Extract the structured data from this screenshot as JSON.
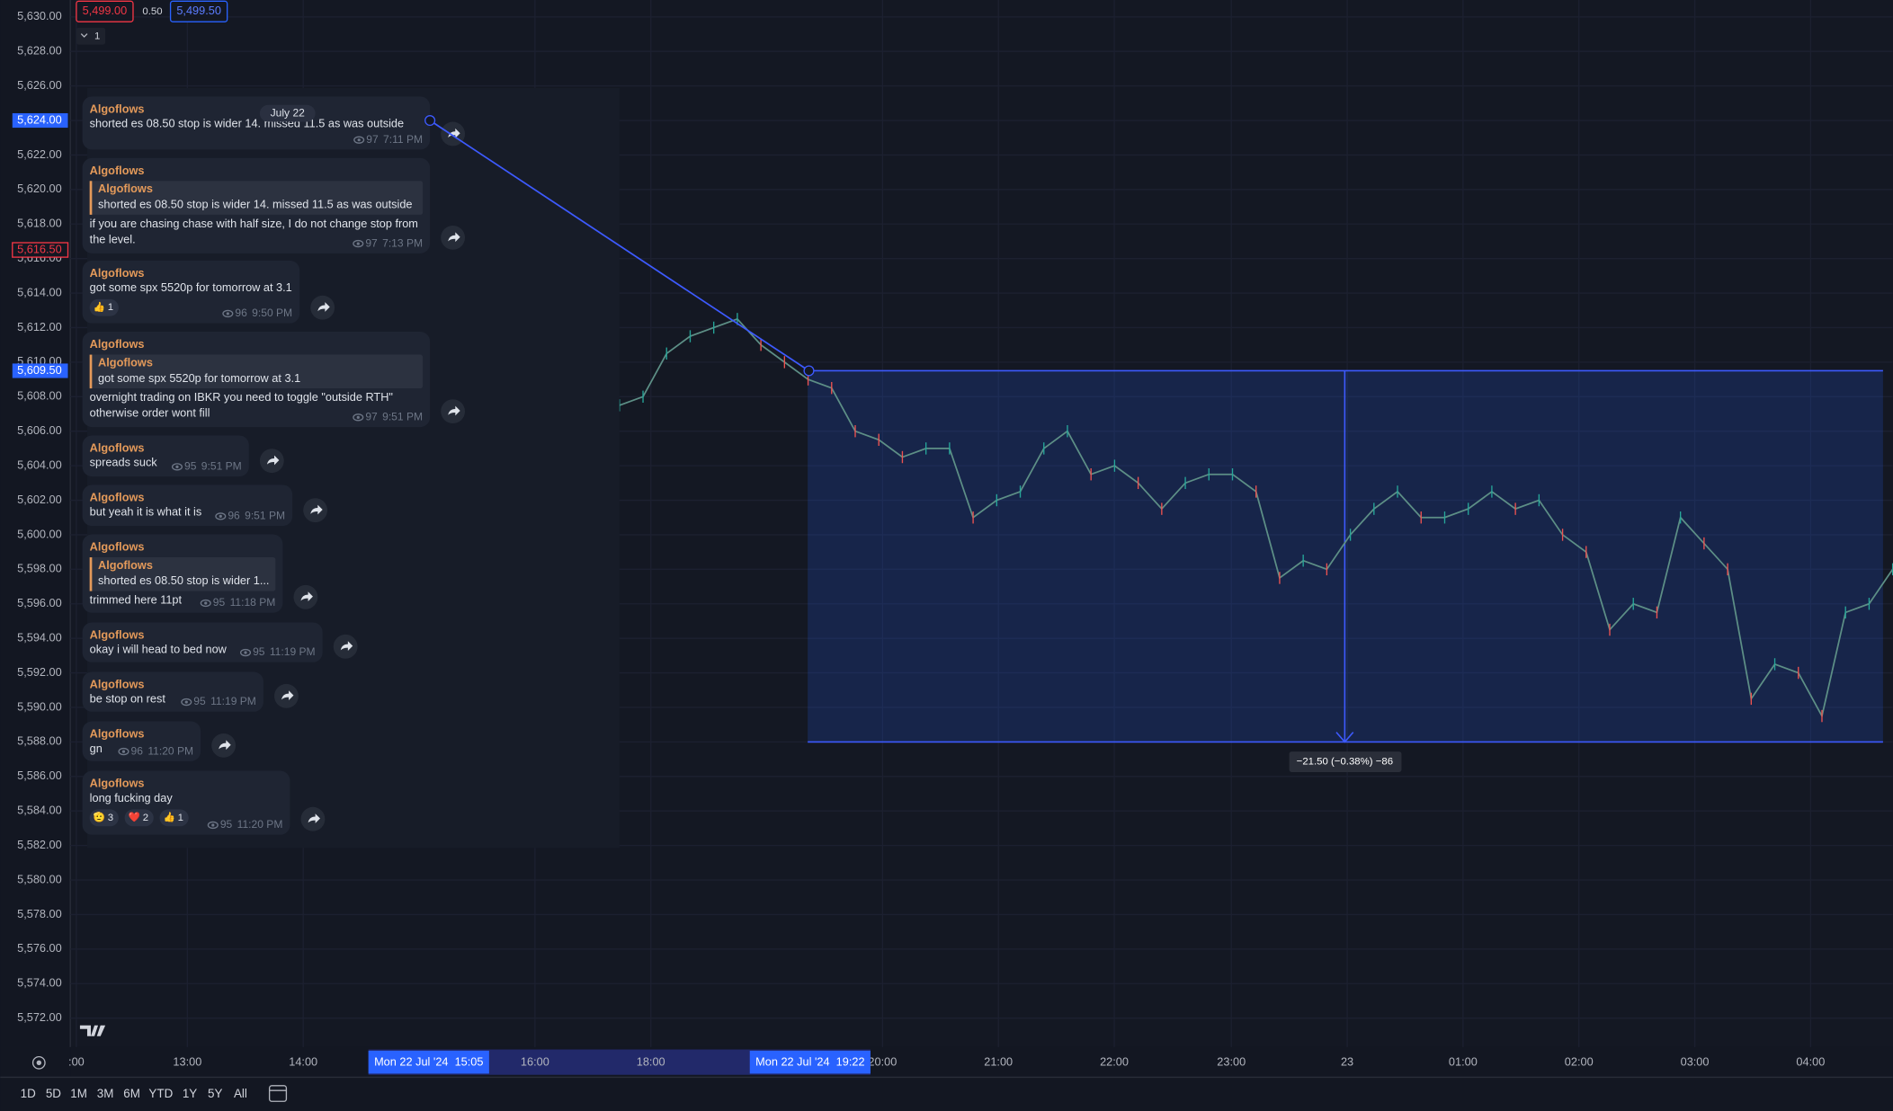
{
  "top_bar": {
    "bid": "5,499.00",
    "spread": "0.50",
    "ask": "5,499.50",
    "quantity": "1"
  },
  "price_axis": {
    "ylim": [
      5572,
      5630
    ],
    "ticks": [
      {
        "value": 5630,
        "label": "5,630.00"
      },
      {
        "value": 5628,
        "label": "5,628.00"
      },
      {
        "value": 5626,
        "label": "5,626.00"
      },
      {
        "value": 5624,
        "label": "5,624.00"
      },
      {
        "value": 5622,
        "label": "5,622.00"
      },
      {
        "value": 5620,
        "label": "5,620.00"
      },
      {
        "value": 5618,
        "label": "5,618.00"
      },
      {
        "value": 5616,
        "label": "5,616.00"
      },
      {
        "value": 5614,
        "label": "5,614.00"
      },
      {
        "value": 5612,
        "label": "5,612.00"
      },
      {
        "value": 5610,
        "label": "5,610.00"
      },
      {
        "value": 5608,
        "label": "5,608.00"
      },
      {
        "value": 5606,
        "label": "5,606.00"
      },
      {
        "value": 5604,
        "label": "5,604.00"
      },
      {
        "value": 5602,
        "label": "5,602.00"
      },
      {
        "value": 5600,
        "label": "5,600.00"
      },
      {
        "value": 5598,
        "label": "5,598.00"
      },
      {
        "value": 5596,
        "label": "5,596.00"
      },
      {
        "value": 5594,
        "label": "5,594.00"
      },
      {
        "value": 5592,
        "label": "5,592.00"
      },
      {
        "value": 5590,
        "label": "5,590.00"
      },
      {
        "value": 5588,
        "label": "5,588.00"
      },
      {
        "value": 5586,
        "label": "5,586.00"
      },
      {
        "value": 5584,
        "label": "5,584.00"
      },
      {
        "value": 5582,
        "label": "5,582.00"
      },
      {
        "value": 5580,
        "label": "5,580.00"
      },
      {
        "value": 5578,
        "label": "5,578.00"
      },
      {
        "value": 5576,
        "label": "5,576.00"
      },
      {
        "value": 5574,
        "label": "5,574.00"
      },
      {
        "value": 5572,
        "label": "5,572.00"
      }
    ],
    "badges": [
      {
        "value": 5624,
        "label": "5,624.00",
        "style": "blue"
      },
      {
        "value": 5616.5,
        "label": "5,616.50",
        "style": "red"
      },
      {
        "value": 5609.5,
        "label": "5,609.50",
        "style": "blue"
      }
    ]
  },
  "time_axis": {
    "labels": [
      ":00",
      "13:00",
      "14:00",
      "16:00",
      "18:00",
      "20:00",
      "21:00",
      "22:00",
      "23:00",
      "23",
      "01:00",
      "02:00",
      "03:00",
      "04:00"
    ],
    "badges": [
      "Mon 22 Jul '24  15:05",
      "Mon 22 Jul '24  19:22"
    ]
  },
  "price_series": [
    5607.5,
    5608,
    5610.5,
    5611.5,
    5612,
    5612.5,
    5611,
    5610,
    5609,
    5608.5,
    5606,
    5605.5,
    5604.5,
    5605,
    5605,
    5601,
    5602,
    5602.5,
    5605,
    5606,
    5603.5,
    5604,
    5603,
    5601.5,
    5603,
    5603.5,
    5603.5,
    5602.5,
    5597.5,
    5598.5,
    5598,
    5600,
    5601.5,
    5602.5,
    5601,
    5601,
    5601.5,
    5602.5,
    5601.5,
    5602,
    5600,
    5599,
    5594.5,
    5596,
    5595.5,
    5601,
    5599.5,
    5598,
    5590.5,
    5592.5,
    5592,
    5589.5,
    5595.5,
    5596,
    5598
  ],
  "trend_line": {
    "from": 5624,
    "to": 5609.5
  },
  "measure": {
    "from": 5609.5,
    "to": 5588,
    "label": "−21.50 (−0.38%) −86"
  },
  "range_buttons": [
    "1D",
    "5D",
    "1M",
    "3M",
    "6M",
    "YTD",
    "1Y",
    "5Y",
    "All"
  ],
  "chat": {
    "date": "July 22",
    "messages": [
      {
        "author": "Algoflows",
        "text": [
          "shorted es 08.50 stop is wider 14. missed 11.5 as was outside"
        ],
        "views": "97",
        "time": "7:11 PM"
      },
      {
        "author": "Algoflows",
        "quote": {
          "author": "Algoflows",
          "text": "shorted es 08.50 stop is wider 14. missed 11.5 as was outside"
        },
        "text": [
          "if you are chasing chase with half size, I do not change stop from",
          "the level."
        ],
        "views": "97",
        "time": "7:13 PM"
      },
      {
        "author": "Algoflows",
        "text": [
          "got some spx 5520p for tomorrow at 3.1"
        ],
        "reactions": [
          {
            "emoji": "👍",
            "count": "1"
          }
        ],
        "views": "96",
        "time": "9:50 PM"
      },
      {
        "author": "Algoflows",
        "quote": {
          "author": "Algoflows",
          "text": "got some spx 5520p for tomorrow at 3.1"
        },
        "text": [
          "overnight trading on IBKR you need to toggle \"outside RTH\"",
          "otherwise order wont fill"
        ],
        "views": "97",
        "time": "9:51 PM"
      },
      {
        "author": "Algoflows",
        "text": [
          "spreads suck"
        ],
        "views": "95",
        "time": "9:51 PM"
      },
      {
        "author": "Algoflows",
        "text": [
          "but yeah it is what it is"
        ],
        "views": "96",
        "time": "9:51 PM"
      },
      {
        "author": "Algoflows",
        "quote": {
          "author": "Algoflows",
          "text": "shorted es 08.50 stop is wider 1..."
        },
        "text": [
          "trimmed here 11pt"
        ],
        "views": "95",
        "time": "11:18 PM"
      },
      {
        "author": "Algoflows",
        "text": [
          "okay i will head to bed now"
        ],
        "views": "95",
        "time": "11:19 PM"
      },
      {
        "author": "Algoflows",
        "text": [
          "be stop on rest"
        ],
        "views": "95",
        "time": "11:19 PM"
      },
      {
        "author": "Algoflows",
        "text": [
          "gn"
        ],
        "views": "96",
        "time": "11:20 PM"
      },
      {
        "author": "Algoflows",
        "text": [
          "long fucking day"
        ],
        "reactions": [
          {
            "emoji": "🫡",
            "count": "3"
          },
          {
            "emoji": "❤️",
            "count": "2"
          },
          {
            "emoji": "👍",
            "count": "1"
          }
        ],
        "views": "95",
        "time": "11:20 PM"
      }
    ]
  }
}
